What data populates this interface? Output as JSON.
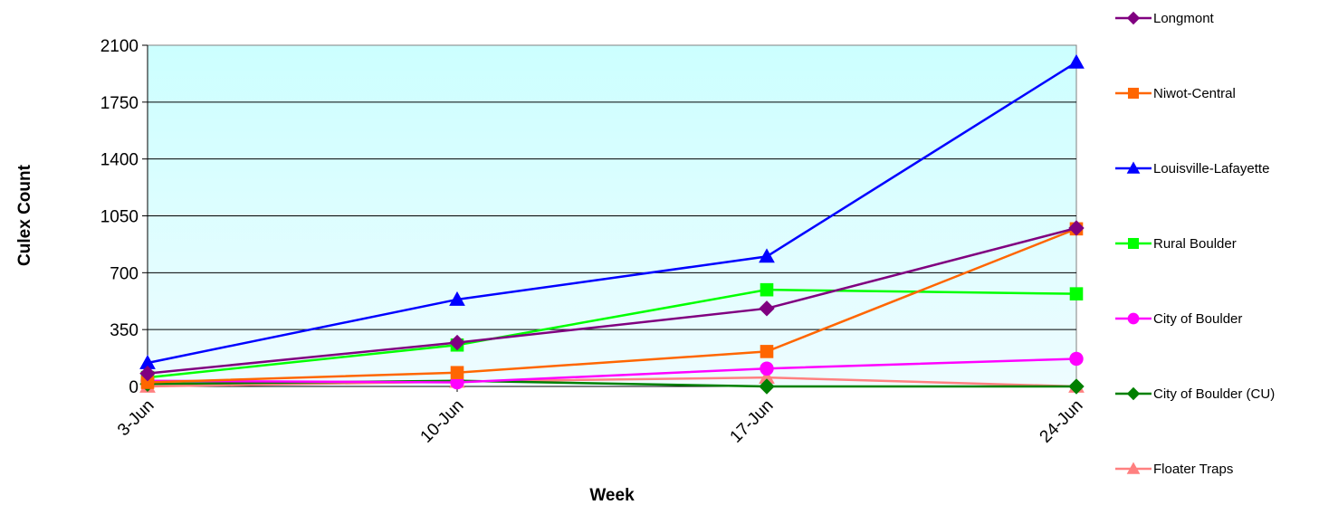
{
  "chart_data": {
    "type": "line",
    "title": "",
    "xlabel": "Week",
    "ylabel": "Culex Count",
    "categories": [
      "3-Jun",
      "10-Jun",
      "17-Jun",
      "24-Jun"
    ],
    "ylim": [
      0,
      2100
    ],
    "yticks": [
      0,
      350,
      700,
      1050,
      1400,
      1750,
      2100
    ],
    "grid": true,
    "legend_position": "right",
    "plot_background": [
      "#ccffff",
      "#eefcff"
    ],
    "series": [
      {
        "name": "Longmont",
        "values": [
          80,
          270,
          480,
          975
        ],
        "color": "#800080",
        "marker": "diamond"
      },
      {
        "name": "Niwot-Central",
        "values": [
          25,
          85,
          215,
          970
        ],
        "color": "#ff6600",
        "marker": "square"
      },
      {
        "name": "Louisville-Lafayette",
        "values": [
          145,
          535,
          800,
          1995
        ],
        "color": "#0000ff",
        "marker": "triangle"
      },
      {
        "name": "Rural Boulder",
        "values": [
          55,
          255,
          595,
          570
        ],
        "color": "#00ff00",
        "marker": "square"
      },
      {
        "name": "City of Boulder",
        "values": [
          35,
          25,
          110,
          170
        ],
        "color": "#ff00ff",
        "marker": "circle"
      },
      {
        "name": "City of Boulder (CU)",
        "values": [
          15,
          35,
          0,
          0
        ],
        "color": "#008000",
        "marker": "diamond"
      },
      {
        "name": "Floater Traps",
        "values": [
          0,
          30,
          55,
          0
        ],
        "color": "#ff8080",
        "marker": "triangle"
      }
    ]
  }
}
